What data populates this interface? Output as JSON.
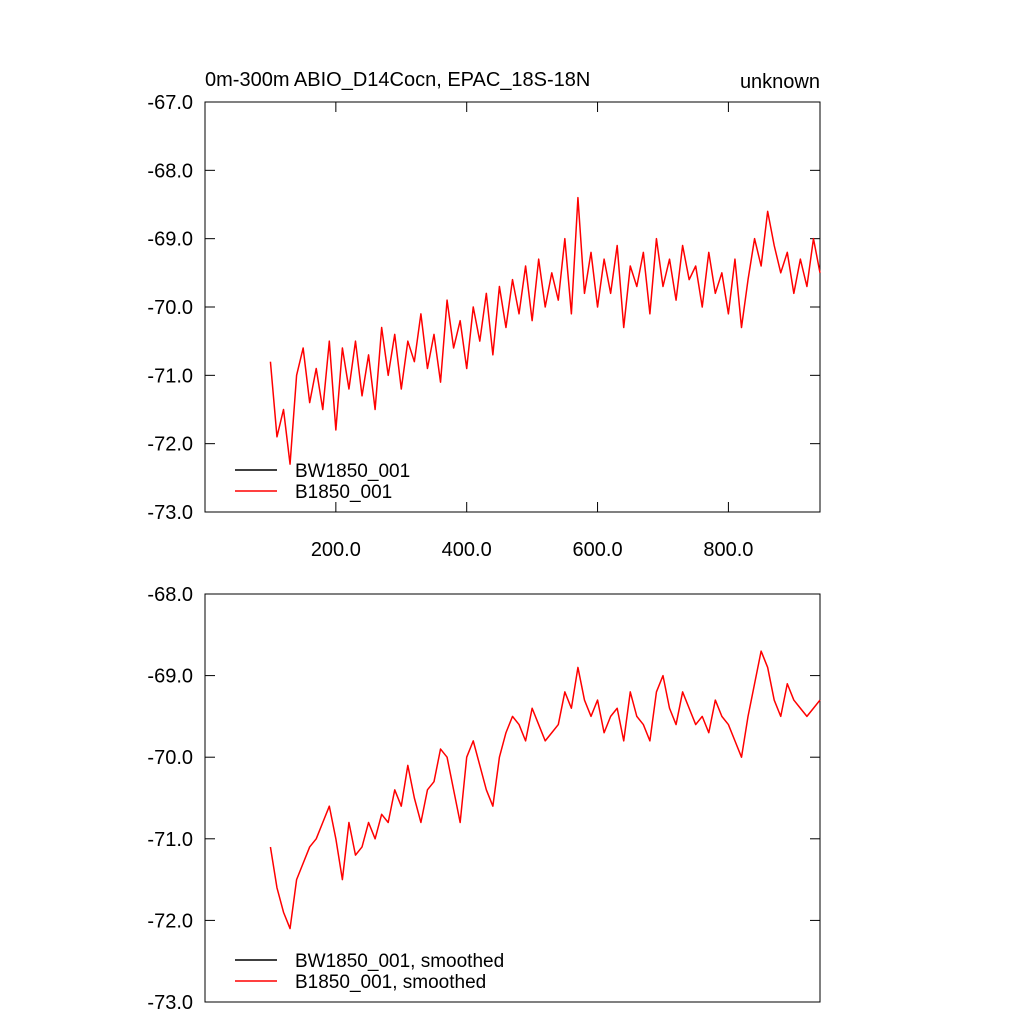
{
  "chart_data": [
    {
      "type": "line",
      "title": "0m-300m ABIO_D14Cocn, EPAC_18S-18N",
      "subtitle": "unknown",
      "x": [
        100,
        110,
        120,
        130,
        140,
        150,
        160,
        170,
        180,
        190,
        200,
        210,
        220,
        230,
        240,
        250,
        260,
        270,
        280,
        290,
        300,
        310,
        320,
        330,
        340,
        350,
        360,
        370,
        380,
        390,
        400,
        410,
        420,
        430,
        440,
        450,
        460,
        470,
        480,
        490,
        500,
        510,
        520,
        530,
        540,
        550,
        560,
        570,
        580,
        590,
        600,
        610,
        620,
        630,
        640,
        650,
        660,
        670,
        680,
        690,
        700,
        710,
        720,
        730,
        740,
        750,
        760,
        770,
        780,
        790,
        800,
        810,
        820,
        830,
        840,
        850,
        860,
        870,
        880,
        890,
        900,
        910,
        920,
        930,
        940
      ],
      "series": [
        {
          "name": "BW1850_001",
          "color": "#000000",
          "values": [
            null,
            null,
            null,
            null,
            null,
            null,
            null,
            null,
            null,
            null,
            null,
            null,
            null,
            null,
            null,
            null,
            null,
            null,
            null,
            null,
            null,
            null,
            null,
            null,
            null,
            null,
            null,
            null,
            null,
            null,
            null,
            null,
            null,
            null,
            null,
            null,
            null,
            null,
            null,
            null,
            null,
            null,
            null,
            null,
            null,
            null,
            null,
            null,
            null,
            null,
            null,
            null,
            null,
            null,
            null,
            null,
            null,
            null,
            null,
            null,
            null,
            null,
            null,
            null,
            null,
            null,
            null,
            null,
            null,
            null,
            null,
            null,
            null,
            null,
            null,
            null,
            null,
            null,
            null,
            null,
            null,
            null,
            null,
            null,
            null
          ]
        },
        {
          "name": "B1850_001",
          "color": "#ff0000",
          "values": [
            -70.8,
            -71.9,
            -71.5,
            -72.3,
            -71.0,
            -70.6,
            -71.4,
            -70.9,
            -71.5,
            -70.5,
            -71.8,
            -70.6,
            -71.2,
            -70.5,
            -71.3,
            -70.7,
            -71.5,
            -70.3,
            -71.0,
            -70.4,
            -71.2,
            -70.5,
            -70.8,
            -70.1,
            -70.9,
            -70.4,
            -71.1,
            -69.9,
            -70.6,
            -70.2,
            -70.9,
            -70.0,
            -70.5,
            -69.8,
            -70.7,
            -69.7,
            -70.3,
            -69.6,
            -70.1,
            -69.4,
            -70.2,
            -69.3,
            -70.0,
            -69.5,
            -69.9,
            -69.0,
            -70.1,
            -68.4,
            -69.8,
            -69.2,
            -70.0,
            -69.3,
            -69.8,
            -69.1,
            -70.3,
            -69.4,
            -69.7,
            -69.2,
            -70.1,
            -69.0,
            -69.7,
            -69.3,
            -69.9,
            -69.1,
            -69.6,
            -69.4,
            -70.0,
            -69.2,
            -69.8,
            -69.5,
            -70.1,
            -69.3,
            -70.3,
            -69.6,
            -69.0,
            -69.4,
            -68.6,
            -69.1,
            -69.5,
            -69.2,
            -69.8,
            -69.3,
            -69.7,
            -69.0,
            -69.5
          ]
        }
      ],
      "xlim": [
        0,
        940
      ],
      "ylim": [
        -73,
        -67
      ],
      "xticks": [
        {
          "value": 200,
          "label": "200.0"
        },
        {
          "value": 400,
          "label": "400.0"
        },
        {
          "value": 600,
          "label": "600.0"
        },
        {
          "value": 800,
          "label": "800.0"
        }
      ],
      "yticks": [
        {
          "value": -67,
          "label": "-67.0"
        },
        {
          "value": -68,
          "label": "-68.0"
        },
        {
          "value": -69,
          "label": "-69.0"
        },
        {
          "value": -70,
          "label": "-70.0"
        },
        {
          "value": -71,
          "label": "-71.0"
        },
        {
          "value": -72,
          "label": "-72.0"
        },
        {
          "value": -73,
          "label": "-73.0"
        }
      ],
      "legend": "lower left"
    },
    {
      "type": "line",
      "x": [
        100,
        110,
        120,
        130,
        140,
        150,
        160,
        170,
        180,
        190,
        200,
        210,
        220,
        230,
        240,
        250,
        260,
        270,
        280,
        290,
        300,
        310,
        320,
        330,
        340,
        350,
        360,
        370,
        380,
        390,
        400,
        410,
        420,
        430,
        440,
        450,
        460,
        470,
        480,
        490,
        500,
        510,
        520,
        530,
        540,
        550,
        560,
        570,
        580,
        590,
        600,
        610,
        620,
        630,
        640,
        650,
        660,
        670,
        680,
        690,
        700,
        710,
        720,
        730,
        740,
        750,
        760,
        770,
        780,
        790,
        800,
        810,
        820,
        830,
        840,
        850,
        860,
        870,
        880,
        890,
        900,
        910,
        920,
        930,
        940
      ],
      "series": [
        {
          "name": "BW1850_001, smoothed",
          "color": "#000000",
          "values": [
            null,
            null,
            null,
            null,
            null,
            null,
            null,
            null,
            null,
            null,
            null,
            null,
            null,
            null,
            null,
            null,
            null,
            null,
            null,
            null,
            null,
            null,
            null,
            null,
            null,
            null,
            null,
            null,
            null,
            null,
            null,
            null,
            null,
            null,
            null,
            null,
            null,
            null,
            null,
            null,
            null,
            null,
            null,
            null,
            null,
            null,
            null,
            null,
            null,
            null,
            null,
            null,
            null,
            null,
            null,
            null,
            null,
            null,
            null,
            null,
            null,
            null,
            null,
            null,
            null,
            null,
            null,
            null,
            null,
            null,
            null,
            null,
            null,
            null,
            null,
            null,
            null,
            null,
            null,
            null,
            null,
            null,
            null,
            null,
            null
          ]
        },
        {
          "name": "B1850_001, smoothed",
          "color": "#ff0000",
          "values": [
            -71.1,
            -71.6,
            -71.9,
            -72.1,
            -71.5,
            -71.3,
            -71.1,
            -71.0,
            -70.8,
            -70.6,
            -71.0,
            -71.5,
            -70.8,
            -71.2,
            -71.1,
            -70.8,
            -71.0,
            -70.7,
            -70.8,
            -70.4,
            -70.6,
            -70.1,
            -70.5,
            -70.8,
            -70.4,
            -70.3,
            -69.9,
            -70.0,
            -70.4,
            -70.8,
            -70.0,
            -69.8,
            -70.1,
            -70.4,
            -70.6,
            -70.0,
            -69.7,
            -69.5,
            -69.6,
            -69.8,
            -69.4,
            -69.6,
            -69.8,
            -69.7,
            -69.6,
            -69.2,
            -69.4,
            -68.9,
            -69.3,
            -69.5,
            -69.3,
            -69.7,
            -69.5,
            -69.4,
            -69.8,
            -69.2,
            -69.5,
            -69.6,
            -69.8,
            -69.2,
            -69.0,
            -69.4,
            -69.6,
            -69.2,
            -69.4,
            -69.6,
            -69.5,
            -69.7,
            -69.3,
            -69.5,
            -69.6,
            -69.8,
            -70.0,
            -69.5,
            -69.1,
            -68.7,
            -68.9,
            -69.3,
            -69.5,
            -69.1,
            -69.3,
            -69.4,
            -69.5,
            -69.4,
            -69.3
          ]
        }
      ],
      "xlim": [
        0,
        940
      ],
      "ylim": [
        -73,
        -68
      ],
      "yticks": [
        {
          "value": -68,
          "label": "-68.0"
        },
        {
          "value": -69,
          "label": "-69.0"
        },
        {
          "value": -70,
          "label": "-70.0"
        },
        {
          "value": -71,
          "label": "-71.0"
        },
        {
          "value": -72,
          "label": "-72.0"
        },
        {
          "value": -73,
          "label": "-73.0"
        }
      ],
      "legend": "lower left"
    }
  ]
}
